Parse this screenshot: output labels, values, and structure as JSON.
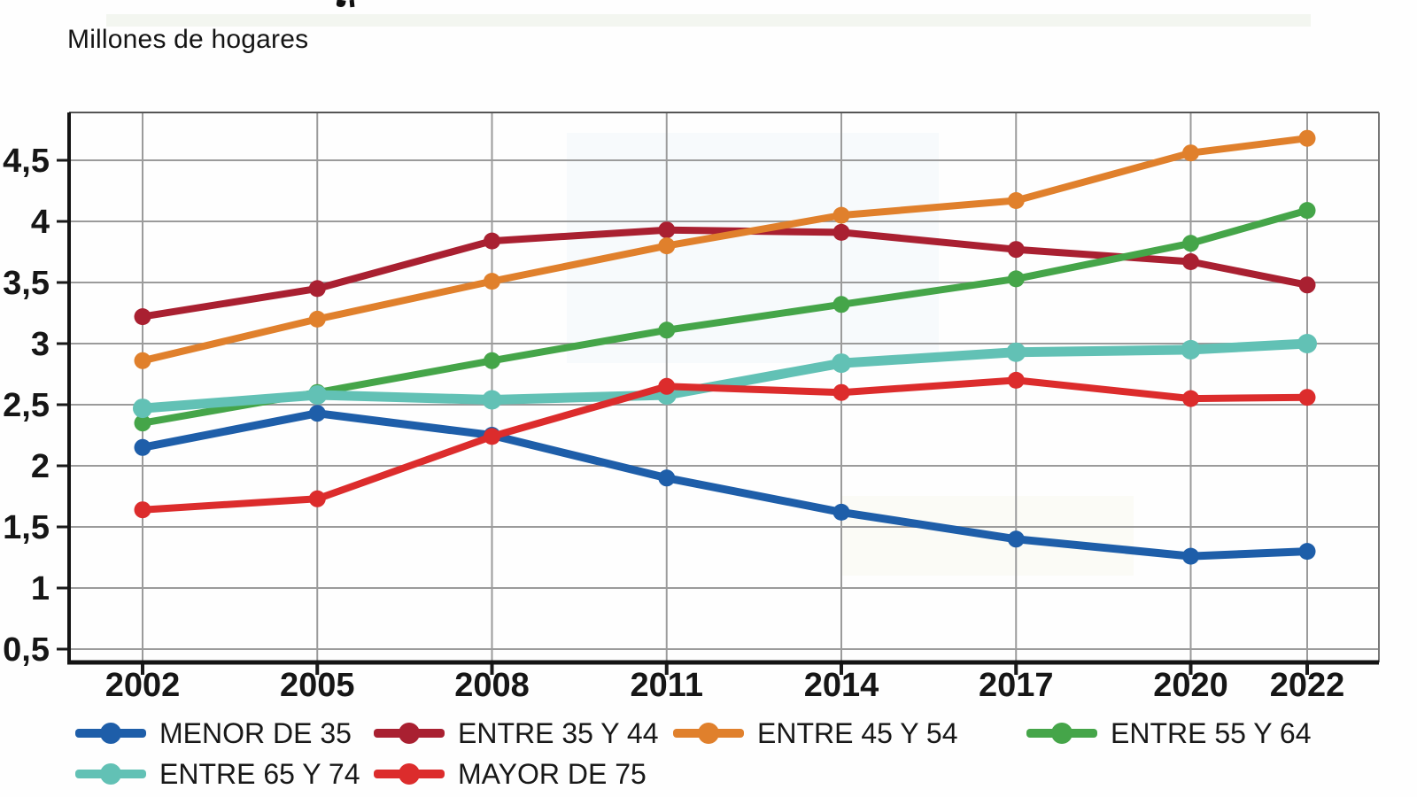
{
  "subtitle": "Millones de hogares",
  "chart_data": {
    "type": "line",
    "title": "",
    "ylabel": "Millones de hogares",
    "xlabel": "",
    "x": [
      2002,
      2005,
      2008,
      2011,
      2014,
      2017,
      2020,
      2022
    ],
    "series": [
      {
        "name": "MENOR DE 35",
        "color": "#1e5ea9",
        "values": [
          2.15,
          2.43,
          2.25,
          1.9,
          1.62,
          1.4,
          1.26,
          1.3
        ]
      },
      {
        "name": "ENTRE 35 Y 44",
        "color": "#a92031",
        "values": [
          3.22,
          3.45,
          3.84,
          3.93,
          3.91,
          3.77,
          3.67,
          3.48
        ]
      },
      {
        "name": "ENTRE 45 Y 54",
        "color": "#e0802c",
        "values": [
          2.86,
          3.2,
          3.51,
          3.8,
          4.05,
          4.17,
          4.56,
          4.68
        ]
      },
      {
        "name": "ENTRE 55 Y 64",
        "color": "#45a549",
        "values": [
          2.35,
          2.6,
          2.86,
          3.11,
          3.32,
          3.53,
          3.82,
          4.09
        ]
      },
      {
        "name": "ENTRE 65 Y 74",
        "color": "#62c1b5",
        "values": [
          2.47,
          2.58,
          2.54,
          2.58,
          2.84,
          2.93,
          2.95,
          3.0
        ]
      },
      {
        "name": "MAYOR DE 75",
        "color": "#dc2c2c",
        "values": [
          1.64,
          1.73,
          2.24,
          2.65,
          2.6,
          2.7,
          2.55,
          2.56
        ]
      }
    ],
    "yticks": [
      0.5,
      1,
      1.5,
      2,
      2.5,
      3,
      3.5,
      4,
      4.5
    ],
    "ylim": [
      0.4,
      4.9
    ],
    "grid": true,
    "decimal_separator": ",",
    "legend_position": "bottom"
  }
}
